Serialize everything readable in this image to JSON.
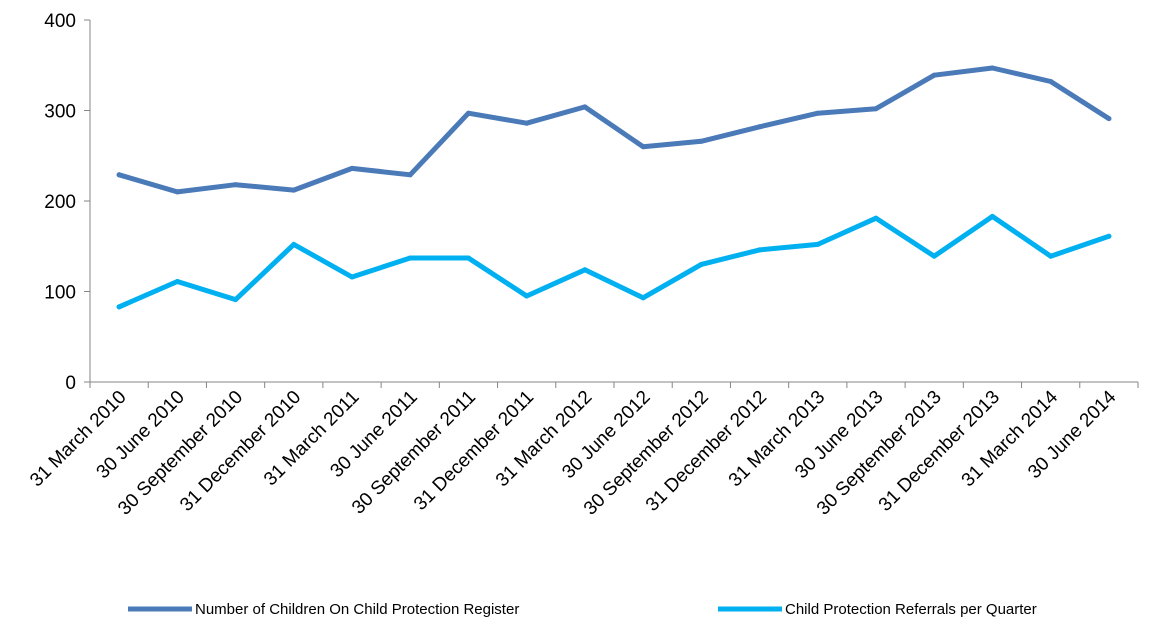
{
  "chart_data": {
    "type": "line",
    "title": "",
    "xlabel": "",
    "ylabel": "",
    "ylim": [
      0,
      400
    ],
    "yticks": [
      0,
      100,
      200,
      300,
      400
    ],
    "grid": false,
    "legend_position": "bottom",
    "categories": [
      "31 March 2010",
      "30 June 2010",
      "30 September 2010",
      "31 December 2010",
      "31 March 2011",
      "30 June 2011",
      "30 September 2011",
      "31 December 2011",
      "31 March 2012",
      "30 June 2012",
      "30 September 2012",
      "31 December 2012",
      "31 March 2013",
      "30 June 2013",
      "30 September 2013",
      "31 December 2013",
      "31 March 2014",
      "30 June 2014"
    ],
    "series": [
      {
        "name": "Number of Children On Child Protection Register",
        "color": "#4a7ab8",
        "values": [
          229,
          210,
          218,
          212,
          236,
          229,
          297,
          286,
          304,
          260,
          266,
          282,
          297,
          302,
          339,
          347,
          332,
          291
        ]
      },
      {
        "name": "Child Protection Referrals per Quarter",
        "color": "#00b0f0",
        "values": [
          83,
          111,
          91,
          152,
          116,
          137,
          137,
          95,
          124,
          93,
          130,
          146,
          152,
          181,
          139,
          183,
          139,
          161
        ]
      }
    ]
  }
}
